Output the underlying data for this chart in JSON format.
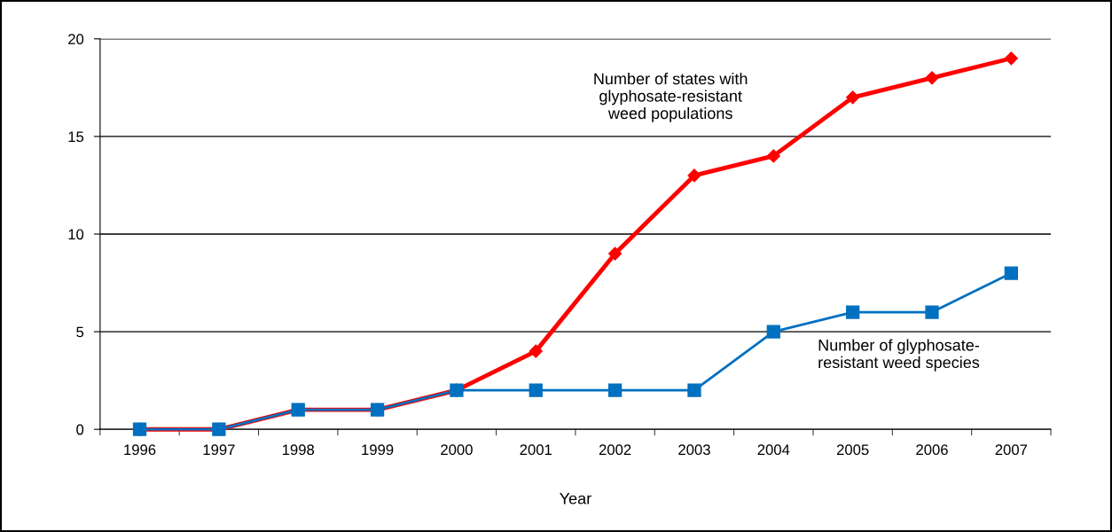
{
  "chart_data": {
    "type": "line",
    "xlabel": "Year",
    "categories": [
      "1996",
      "1997",
      "1998",
      "1999",
      "2000",
      "2001",
      "2002",
      "2003",
      "2004",
      "2005",
      "2006",
      "2007"
    ],
    "series": [
      {
        "name": "Number of glyphosate-\nresistant weed species",
        "color": "#0070c0",
        "marker": "square",
        "values": [
          0,
          0,
          1,
          1,
          2,
          2,
          2,
          2,
          5,
          6,
          6,
          8
        ]
      },
      {
        "name": "Number of states with\nglyphosate-resistant\nweed populations",
        "color": "#ff0000",
        "marker": "diamond",
        "values": [
          0,
          0,
          1,
          1,
          2,
          4,
          9,
          13,
          14,
          17,
          18,
          19
        ]
      }
    ],
    "ylim": [
      0,
      20
    ],
    "yticks": [
      0,
      5,
      10,
      15,
      20
    ],
    "grid": "y",
    "legend": false,
    "line_style": "solid"
  }
}
